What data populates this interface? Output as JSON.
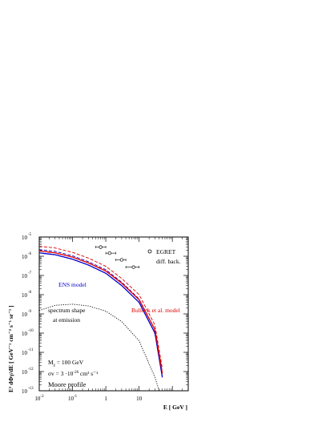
{
  "chart_data": {
    "type": "line",
    "xscale": "log",
    "yscale": "log",
    "xlim": [
      0.01,
      300
    ],
    "ylim": [
      1e-13,
      1e-05
    ],
    "xlabel": "E [ GeV ]",
    "ylabel": "E² dΦγ/dE [ GeV⁻¹ cm⁻² s⁻¹ sr⁻¹ ]",
    "x_ticks": [
      {
        "base": "10",
        "exp": "-2",
        "value": 0.01
      },
      {
        "base": "10",
        "exp": "-1",
        "value": 0.1
      },
      {
        "base": "1",
        "exp": "",
        "value": 1
      },
      {
        "base": "10",
        "exp": "",
        "value": 10
      }
    ],
    "y_ticks": [
      {
        "base": "10",
        "exp": "-5",
        "value": 1e-05
      },
      {
        "base": "10",
        "exp": "-6",
        "value": 1e-06
      },
      {
        "base": "10",
        "exp": "-7",
        "value": 1e-07
      },
      {
        "base": "10",
        "exp": "-8",
        "value": 1e-08
      },
      {
        "base": "10",
        "exp": "-9",
        "value": 1e-09
      },
      {
        "base": "10",
        "exp": "-10",
        "value": 1e-10
      },
      {
        "base": "10",
        "exp": "-11",
        "value": 1e-11
      },
      {
        "base": "10",
        "exp": "-12",
        "value": 1e-12
      },
      {
        "base": "10",
        "exp": "-13",
        "value": 1e-13
      }
    ],
    "series": [
      {
        "name": "ENS model",
        "color": "#0000cc",
        "style": "solid",
        "x": [
          0.01,
          0.03,
          0.1,
          0.3,
          1,
          3,
          10,
          30,
          50
        ],
        "y": [
          1.5e-06,
          1.2e-06,
          7e-07,
          3.5e-07,
          1.3e-07,
          3e-08,
          4e-09,
          1e-10,
          5e-13
        ]
      },
      {
        "name": "ENS model",
        "color": "#0000cc",
        "style": "dashed",
        "x": [
          0.01,
          0.03,
          0.1,
          0.3,
          1,
          3,
          10,
          30,
          50
        ],
        "y": [
          2.2e-06,
          1.8e-06,
          1.05e-06,
          5.2e-07,
          2e-07,
          4.5e-08,
          6e-09,
          1.5e-10,
          8e-13
        ]
      },
      {
        "name": "Bullock et al. model",
        "color": "#dd0000",
        "style": "solid",
        "x": [
          0.01,
          0.03,
          0.1,
          0.3,
          1,
          3,
          10,
          30,
          50
        ],
        "y": [
          1.9e-06,
          1.5e-06,
          9e-07,
          4.5e-07,
          1.7e-07,
          4e-08,
          5.5e-09,
          1.5e-10,
          8e-13
        ]
      },
      {
        "name": "Bullock et al. model",
        "color": "#dd0000",
        "style": "dashed",
        "x": [
          0.01,
          0.03,
          0.1,
          0.3,
          1,
          3,
          10,
          30,
          50
        ],
        "y": [
          3.3e-06,
          2.7e-06,
          1.6e-06,
          8e-07,
          3e-07,
          7e-08,
          1e-08,
          2.6e-10,
          1.4e-12
        ]
      },
      {
        "name": "spectrum shape at emission",
        "color": "#000000",
        "style": "dotted",
        "x": [
          0.01,
          0.03,
          0.1,
          0.3,
          1,
          3,
          10,
          30,
          50
        ],
        "y": [
          1.5e-09,
          2.8e-09,
          3.2e-09,
          2.6e-09,
          1.4e-09,
          4e-10,
          4e-11,
          5e-13,
          3e-14
        ]
      }
    ],
    "data_points": {
      "name": "EGRET diff. back.",
      "points": [
        {
          "x": 0.7,
          "y": 3e-06,
          "xerr": [
            0.5,
            1.0
          ]
        },
        {
          "x": 1.3,
          "y": 1.45e-06,
          "xerr": [
            1.0,
            2.0
          ]
        },
        {
          "x": 3.0,
          "y": 6.5e-07,
          "xerr": [
            2.0,
            4.0
          ]
        },
        {
          "x": 6.8,
          "y": 2.7e-07,
          "xerr": [
            4.0,
            10.0
          ]
        }
      ]
    },
    "annotations": {
      "egret_line1": "EGRET",
      "egret_line2": "diff. back.",
      "ens": "ENS model",
      "bullock": "Bullock et al. model",
      "shape_line1": "spectrum shape",
      "shape_line2": "at emission",
      "mass_prefix": "M",
      "mass_sub": "χ",
      "mass_suffix": " = 100 GeV",
      "sigma_prefix": "σv = 3 ·10",
      "sigma_exp": "-26",
      "sigma_suffix": " cm³ s⁻¹",
      "profile": "Moore profile"
    },
    "grid": false,
    "legend": "none"
  }
}
